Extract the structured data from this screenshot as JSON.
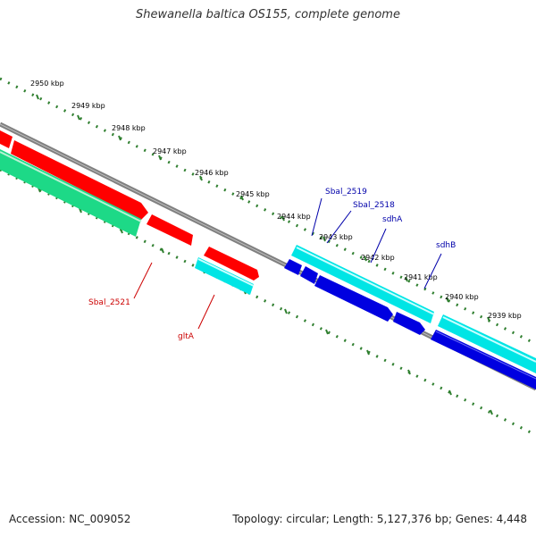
{
  "title": "Shewanella baltica OS155, complete genome",
  "accession": "Accession: NC_009052",
  "summary": "Topology: circular; Length: 5,127,376 bp; Genes: 4,448",
  "colors": {
    "forward_cds": "#ff0000",
    "reverse_cds": "#ff0000",
    "rna_light": "#00e5e5",
    "gene_dark": "#0000e0",
    "green_feature": "#1dd987",
    "backbone": "#808080",
    "ticks": "#2f7f2f",
    "label_red": "#cc0000",
    "label_blue": "#0000aa"
  },
  "scale": {
    "unit": "kbp",
    "ticks": [
      "2950 kbp",
      "2949 kbp",
      "2948 kbp",
      "2947 kbp",
      "2946 kbp",
      "2945 kbp",
      "2944 kbp",
      "2943 kbp",
      "2942 kbp",
      "2941 kbp",
      "2940 kbp",
      "2939 kbp"
    ]
  },
  "gene_labels": {
    "sbal_2521": "Sbal_2521",
    "glta": "gltA",
    "sbal_2519": "Sbal_2519",
    "sbal_2518": "Sbal_2518",
    "sdha": "sdhA",
    "sdhb": "sdhB"
  }
}
